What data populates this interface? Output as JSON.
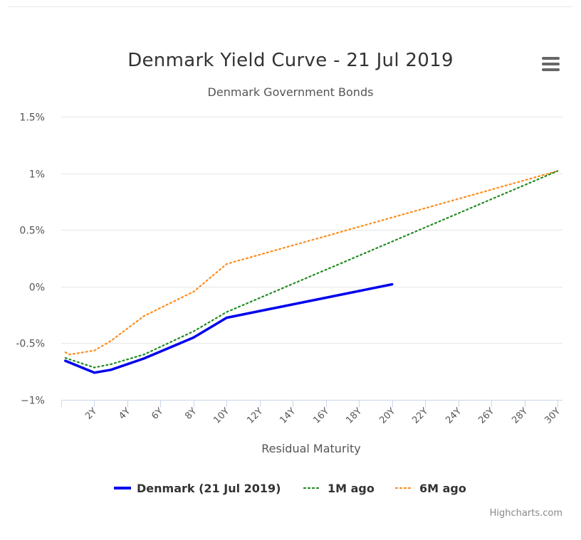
{
  "chart_data": {
    "type": "line",
    "title": "Denmark Yield Curve - 21 Jul 2019",
    "subtitle": "Denmark Government Bonds",
    "xlabel": "Residual Maturity",
    "ylabel": "",
    "ylim": [
      -1,
      1.5
    ],
    "xlim": [
      0,
      30.3
    ],
    "yticks": [
      {
        "value": 1.5,
        "label": "1.5%"
      },
      {
        "value": 1,
        "label": "1%"
      },
      {
        "value": 0.5,
        "label": "0.5%"
      },
      {
        "value": 0,
        "label": "0%"
      },
      {
        "value": -0.5,
        "label": "-0.5%"
      },
      {
        "value": -1,
        "label": "−1%"
      }
    ],
    "xticks": [
      {
        "value": 2,
        "label": "2Y"
      },
      {
        "value": 4,
        "label": "4Y"
      },
      {
        "value": 6,
        "label": "6Y"
      },
      {
        "value": 8,
        "label": "8Y"
      },
      {
        "value": 10,
        "label": "10Y"
      },
      {
        "value": 12,
        "label": "12Y"
      },
      {
        "value": 14,
        "label": "14Y"
      },
      {
        "value": 16,
        "label": "16Y"
      },
      {
        "value": 18,
        "label": "18Y"
      },
      {
        "value": 20,
        "label": "20Y"
      },
      {
        "value": 22,
        "label": "22Y"
      },
      {
        "value": 24,
        "label": "24Y"
      },
      {
        "value": 26,
        "label": "26Y"
      },
      {
        "value": 28,
        "label": "28Y"
      },
      {
        "value": 30,
        "label": "30Y"
      }
    ],
    "series": [
      {
        "name": "Denmark (21 Jul 2019)",
        "color": "#0000ee",
        "style": "solid",
        "points": [
          [
            0.25,
            -0.655
          ],
          [
            2,
            -0.76
          ],
          [
            3,
            -0.735
          ],
          [
            5,
            -0.635
          ],
          [
            8,
            -0.45
          ],
          [
            10,
            -0.275
          ],
          [
            20,
            0.02
          ]
        ]
      },
      {
        "name": "1M ago",
        "color": "#228b22",
        "style": "dotted",
        "points": [
          [
            0.25,
            -0.63
          ],
          [
            2,
            -0.715
          ],
          [
            3,
            -0.685
          ],
          [
            5,
            -0.6
          ],
          [
            8,
            -0.395
          ],
          [
            10,
            -0.225
          ],
          [
            30,
            1.02
          ]
        ]
      },
      {
        "name": "6M ago",
        "color": "#ff8c1a",
        "style": "dotted",
        "points": [
          [
            0.25,
            -0.58
          ],
          [
            0.5,
            -0.6
          ],
          [
            2,
            -0.565
          ],
          [
            3,
            -0.48
          ],
          [
            5,
            -0.26
          ],
          [
            8,
            -0.045
          ],
          [
            10,
            0.2
          ],
          [
            30,
            1.02
          ]
        ]
      }
    ],
    "legend_position": "bottom-center",
    "grid": true
  },
  "credits": "Highcharts.com",
  "menu": {
    "icon": "hamburger-menu-icon"
  }
}
